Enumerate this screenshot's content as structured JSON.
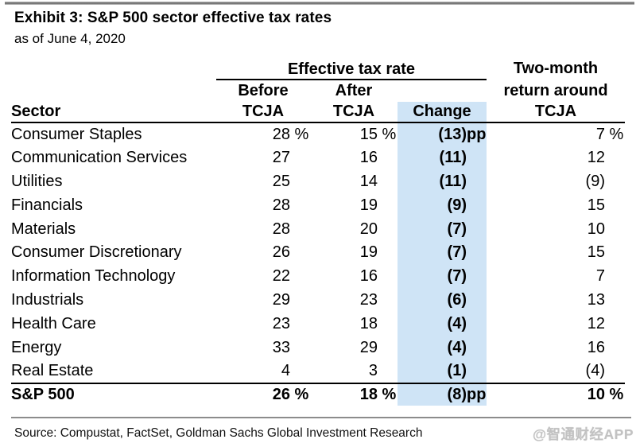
{
  "exhibit": {
    "title": "Exhibit 3: S&P 500 sector effective tax rates",
    "subtitle": "as of June 4, 2020"
  },
  "table": {
    "group_header": "Effective tax rate",
    "sector_header": "Sector",
    "before_header_lines": [
      "Before",
      "TCJA"
    ],
    "after_header_lines": [
      "After",
      "TCJA"
    ],
    "change_header": "Change",
    "return_header_lines": [
      "Two-month",
      "return around",
      "TCJA"
    ],
    "rows": [
      {
        "sector": "Consumer Staples",
        "values": [
          {
            "v": "28",
            "s": " %"
          },
          {
            "v": "15",
            "s": " %"
          },
          {
            "v": "(13)",
            "s": "pp"
          },
          {
            "v": "7",
            "s": " %"
          }
        ]
      },
      {
        "sector": "Communication Services",
        "values": [
          {
            "v": "27",
            "s": ""
          },
          {
            "v": "16",
            "s": ""
          },
          {
            "v": "(11)",
            "s": ""
          },
          {
            "v": "12",
            "s": ""
          }
        ]
      },
      {
        "sector": "Utilities",
        "values": [
          {
            "v": "25",
            "s": ""
          },
          {
            "v": "14",
            "s": ""
          },
          {
            "v": "(11)",
            "s": ""
          },
          {
            "v": "(9)",
            "s": ""
          }
        ]
      },
      {
        "sector": "Financials",
        "values": [
          {
            "v": "28",
            "s": ""
          },
          {
            "v": "19",
            "s": ""
          },
          {
            "v": "(9)",
            "s": ""
          },
          {
            "v": "15",
            "s": ""
          }
        ]
      },
      {
        "sector": "Materials",
        "values": [
          {
            "v": "28",
            "s": ""
          },
          {
            "v": "20",
            "s": ""
          },
          {
            "v": "(7)",
            "s": ""
          },
          {
            "v": "10",
            "s": ""
          }
        ]
      },
      {
        "sector": "Consumer Discretionary",
        "values": [
          {
            "v": "26",
            "s": ""
          },
          {
            "v": "19",
            "s": ""
          },
          {
            "v": "(7)",
            "s": ""
          },
          {
            "v": "15",
            "s": ""
          }
        ]
      },
      {
        "sector": "Information Technology",
        "values": [
          {
            "v": "22",
            "s": ""
          },
          {
            "v": "16",
            "s": ""
          },
          {
            "v": "(7)",
            "s": ""
          },
          {
            "v": "7",
            "s": ""
          }
        ]
      },
      {
        "sector": "Industrials",
        "values": [
          {
            "v": "29",
            "s": ""
          },
          {
            "v": "23",
            "s": ""
          },
          {
            "v": "(6)",
            "s": ""
          },
          {
            "v": "13",
            "s": ""
          }
        ]
      },
      {
        "sector": "Health Care",
        "values": [
          {
            "v": "23",
            "s": ""
          },
          {
            "v": "18",
            "s": ""
          },
          {
            "v": "(4)",
            "s": ""
          },
          {
            "v": "12",
            "s": ""
          }
        ]
      },
      {
        "sector": "Energy",
        "values": [
          {
            "v": "33",
            "s": ""
          },
          {
            "v": "29",
            "s": ""
          },
          {
            "v": "(4)",
            "s": ""
          },
          {
            "v": "16",
            "s": ""
          }
        ]
      },
      {
        "sector": "Real Estate",
        "values": [
          {
            "v": "4",
            "s": ""
          },
          {
            "v": "3",
            "s": ""
          },
          {
            "v": "(1)",
            "s": ""
          },
          {
            "v": "(4)",
            "s": ""
          }
        ]
      }
    ],
    "total": {
      "sector": "S&P 500",
      "values": [
        {
          "v": "26",
          "s": " %"
        },
        {
          "v": "18",
          "s": " %"
        },
        {
          "v": "(8)",
          "s": "pp"
        },
        {
          "v": "10",
          "s": " %"
        }
      ]
    }
  },
  "footer": {
    "source": "Source: Compustat, FactSet, Goldman Sachs Global Investment Research",
    "watermark": "@智通财经APP"
  },
  "colors": {
    "change_highlight": "#cfe4f6",
    "table_rule": "#000000",
    "top_rule": "#7a7a7a",
    "footer_rule": "#8c8c8c",
    "watermark_gray": "#c2c2c2"
  },
  "chart_data": {
    "type": "table",
    "title": "Exhibit 3: S&P 500 sector effective tax rates",
    "subtitle": "as of June 4, 2020",
    "columns": [
      "Sector",
      "Effective tax rate Before TCJA (%)",
      "Effective tax rate After TCJA (%)",
      "Change (pp)",
      "Two-month return around TCJA (%)"
    ],
    "rows": [
      [
        "Consumer Staples",
        28,
        15,
        -13,
        7
      ],
      [
        "Communication Services",
        27,
        16,
        -11,
        12
      ],
      [
        "Utilities",
        25,
        14,
        -11,
        -9
      ],
      [
        "Financials",
        28,
        19,
        -9,
        15
      ],
      [
        "Materials",
        28,
        20,
        -7,
        10
      ],
      [
        "Consumer Discretionary",
        26,
        19,
        -7,
        15
      ],
      [
        "Information Technology",
        22,
        16,
        -7,
        7
      ],
      [
        "Industrials",
        29,
        23,
        -6,
        13
      ],
      [
        "Health Care",
        23,
        18,
        -4,
        12
      ],
      [
        "Energy",
        33,
        29,
        -4,
        16
      ],
      [
        "Real Estate",
        4,
        3,
        -1,
        -4
      ],
      [
        "S&P 500",
        26,
        18,
        -8,
        10
      ]
    ],
    "notes": "Negative values shown in parentheses in the rendered table; Change column highlighted light blue",
    "source": "Source: Compustat, FactSet, Goldman Sachs Global Investment Research"
  }
}
